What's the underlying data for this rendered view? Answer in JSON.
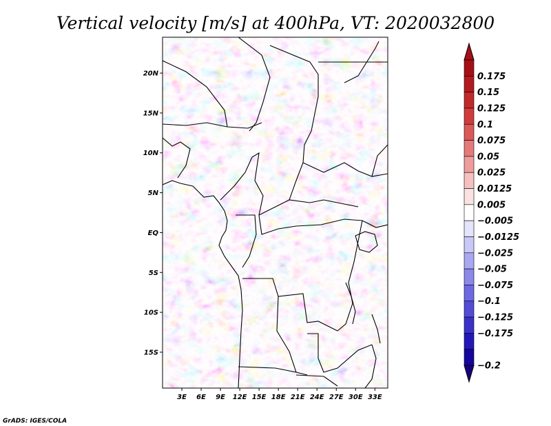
{
  "chart_data": {
    "type": "heatmap",
    "title": "Vertical velocity [m/s] at 400hPa, VT: 2020032800",
    "variable": "Vertical velocity",
    "units": "m/s",
    "level": "400hPa",
    "valid_time": "2020032800",
    "xlabel": "",
    "ylabel": "",
    "xlim": [
      0,
      35
    ],
    "ylim": [
      -19.5,
      24.5
    ],
    "x_ticks": [
      {
        "value": 3,
        "label": "3E"
      },
      {
        "value": 6,
        "label": "6E"
      },
      {
        "value": 9,
        "label": "9E"
      },
      {
        "value": 12,
        "label": "12E"
      },
      {
        "value": 15,
        "label": "15E"
      },
      {
        "value": 18,
        "label": "18E"
      },
      {
        "value": 21,
        "label": "21E"
      },
      {
        "value": 24,
        "label": "24E"
      },
      {
        "value": 27,
        "label": "27E"
      },
      {
        "value": 30,
        "label": "30E"
      },
      {
        "value": 33,
        "label": "33E"
      }
    ],
    "y_ticks": [
      {
        "value": 20,
        "label": "20N"
      },
      {
        "value": 15,
        "label": "15N"
      },
      {
        "value": 10,
        "label": "10N"
      },
      {
        "value": 5,
        "label": "5N"
      },
      {
        "value": 0,
        "label": "EQ"
      },
      {
        "value": -5,
        "label": "5S"
      },
      {
        "value": -10,
        "label": "10S"
      },
      {
        "value": -15,
        "label": "15S"
      }
    ],
    "colorbar": {
      "labels": [
        "0.175",
        "0.15",
        "0.125",
        "0.1",
        "0.075",
        "0.05",
        "0.025",
        "0.0125",
        "0.005",
        "−0.005",
        "−0.0125",
        "−0.025",
        "−0.05",
        "−0.075",
        "−0.1",
        "−0.125",
        "−0.175",
        "−0.2"
      ],
      "colors_top_to_bottom": [
        "#a50f15",
        "#b31a1f",
        "#c12a2a",
        "#d03c3c",
        "#dc5959",
        "#e57a7a",
        "#ee9c9c",
        "#f5c0c0",
        "#fbe2e2",
        "#ffffff",
        "#e4e4fb",
        "#c9c8f7",
        "#aaa8f1",
        "#8c88ea",
        "#6e69e2",
        "#524cd6",
        "#3a32c8",
        "#2417b8",
        "#16069c"
      ],
      "extend": "both",
      "top_triangle_color": "#a50f15",
      "bottom_triangle_color": "#1a0080"
    },
    "credit": "GrADS: IGES/COLA"
  }
}
